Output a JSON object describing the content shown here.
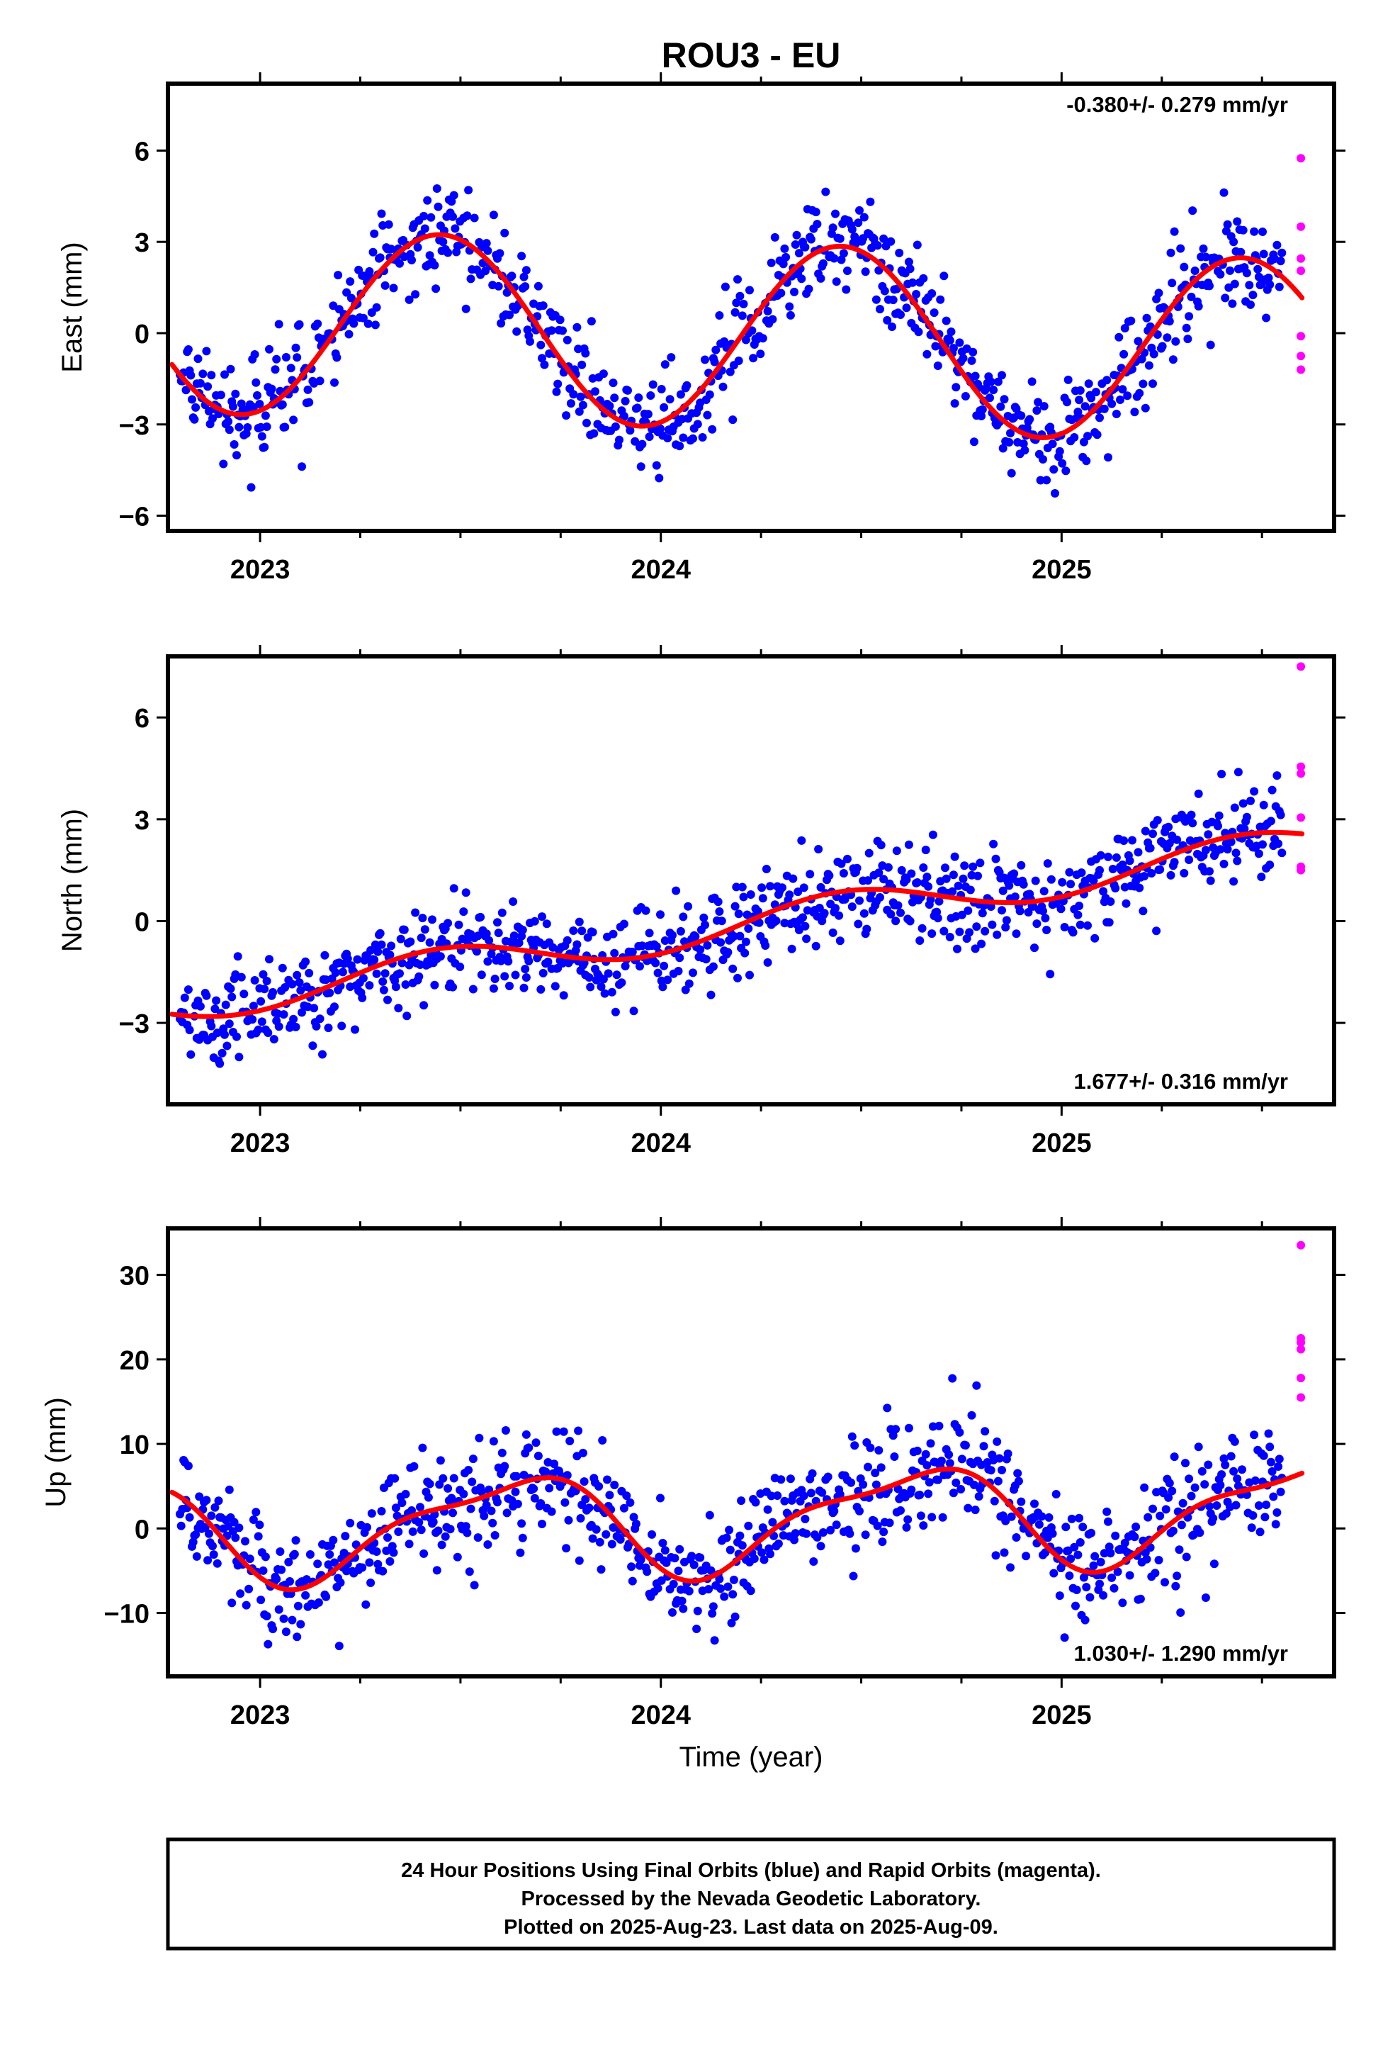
{
  "title": "ROU3 - EU",
  "xlabel": "Time (year)",
  "colors": {
    "final": "#0000ff",
    "rapid": "#ff00ff",
    "fit": "#ff0000",
    "frame": "#000000"
  },
  "footer": {
    "lines": [
      "24 Hour Positions Using Final Orbits (blue) and Rapid Orbits (magenta).",
      "Processed by the Nevada Geodetic Laboratory.",
      "Plotted on 2025-Aug-23. Last data on 2025-Aug-09."
    ]
  },
  "chart_data": [
    {
      "type": "scatter",
      "panel": "east",
      "ylabel": "East (mm)",
      "rate": "-0.380+/- 0.279 mm/yr",
      "rate_position": "top-right",
      "xlim": [
        2022.77,
        2025.68
      ],
      "ylim": [
        -6.5,
        8.2
      ],
      "xticks": [
        2023,
        2024,
        2025
      ],
      "yticks": [
        -6,
        -3,
        0,
        3,
        6
      ],
      "model": {
        "offset": -0.1,
        "rate": -0.38,
        "amplitude": 3.05,
        "peak": 2023.45,
        "ref": 2024.2,
        "semi_amplitude": 0,
        "semi_phase": 0,
        "noise": 0.85
      },
      "series": [
        {
          "name": "Final Orbits",
          "color": "#0000ff",
          "x_range": [
            2022.8,
            2025.55
          ],
          "step_days": 1.1
        },
        {
          "name": "Rapid Orbits",
          "color": "#ff00ff",
          "x": [
            2025.597,
            2025.597,
            2025.597,
            2025.597,
            2025.597,
            2025.597,
            2025.597
          ],
          "y": [
            5.75,
            3.5,
            2.45,
            2.05,
            -0.1,
            -0.75,
            -1.2
          ]
        }
      ],
      "fit": {
        "name": "Model fit",
        "color": "#ff0000"
      }
    },
    {
      "type": "scatter",
      "panel": "north",
      "ylabel": "North (mm)",
      "rate": "1.677+/- 0.316 mm/yr",
      "rate_position": "bottom-right",
      "xlim": [
        2022.77,
        2025.68
      ],
      "ylim": [
        -5.4,
        7.8
      ],
      "xticks": [
        2023,
        2024,
        2025
      ],
      "yticks": [
        -3,
        0,
        3,
        6
      ],
      "model": {
        "offset": -0.1,
        "rate": 1.677,
        "amplitude": 0.55,
        "peak": 2023.45,
        "ref": 2024.2,
        "semi_amplitude": 0,
        "semi_phase": 0,
        "noise": 0.7
      },
      "series": [
        {
          "name": "Final Orbits",
          "color": "#0000ff",
          "x_range": [
            2022.8,
            2025.55
          ],
          "step_days": 1.1
        },
        {
          "name": "Rapid Orbits",
          "color": "#ff00ff",
          "x": [
            2025.597,
            2025.597,
            2025.597,
            2025.597,
            2025.597,
            2025.597
          ],
          "y": [
            7.5,
            4.55,
            4.35,
            3.05,
            1.6,
            1.5
          ]
        }
      ],
      "fit": {
        "name": "Model fit",
        "color": "#ff0000"
      }
    },
    {
      "type": "scatter",
      "panel": "up",
      "ylabel": "Up (mm)",
      "rate": "1.030+/- 1.290 mm/yr",
      "rate_position": "bottom-right",
      "xlim": [
        2022.77,
        2025.68
      ],
      "ylim": [
        -17.5,
        35.5
      ],
      "xticks": [
        2023,
        2024,
        2025
      ],
      "yticks": [
        -10,
        0,
        10,
        20,
        30
      ],
      "model": {
        "offset": 1.0,
        "rate": 1.03,
        "amplitude": 5.6,
        "peak": 2023.62,
        "ref": 2024.2,
        "semi_amplitude": 1.8,
        "semi_phase": 2023.3,
        "noise": 3.3
      },
      "series": [
        {
          "name": "Final Orbits",
          "color": "#0000ff",
          "x_range": [
            2022.8,
            2025.55
          ],
          "step_days": 1.1
        },
        {
          "name": "Rapid Orbits",
          "color": "#ff00ff",
          "x": [
            2025.597,
            2025.597,
            2025.597,
            2025.597,
            2025.597,
            2025.597
          ],
          "y": [
            33.5,
            22.5,
            22.0,
            21.2,
            17.8,
            15.5
          ]
        }
      ],
      "fit": {
        "name": "Model fit",
        "color": "#ff0000"
      }
    }
  ]
}
